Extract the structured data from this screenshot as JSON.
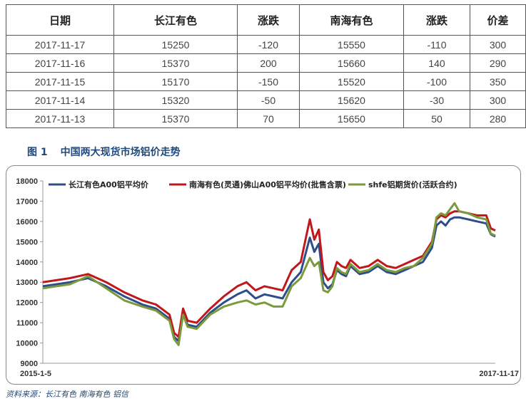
{
  "table": {
    "headers": [
      "日期",
      "长江有色",
      "涨跌",
      "南海有色",
      "涨跌",
      "价差"
    ],
    "rows": [
      [
        "2017-11-17",
        "15250",
        "-120",
        "15550",
        "-110",
        "300"
      ],
      [
        "2017-11-16",
        "15370",
        "200",
        "15660",
        "140",
        "290"
      ],
      [
        "2017-11-15",
        "15170",
        "-150",
        "15520",
        "-100",
        "350"
      ],
      [
        "2017-11-14",
        "15320",
        "-50",
        "15620",
        "-30",
        "300"
      ],
      [
        "2017-11-13",
        "15370",
        "70",
        "15650",
        "50",
        "280"
      ]
    ]
  },
  "figure": {
    "number": "图 1",
    "title": "中国两大现货市场铝价走势"
  },
  "source": "资料来源：长江有色   南海有色   铝信",
  "chart_data": {
    "type": "line",
    "x_start_label": "2015-1-5",
    "x_end_label": "2017-11-17",
    "ylim": [
      9000,
      18000
    ],
    "yticks": [
      9000,
      10000,
      11000,
      12000,
      13000,
      14000,
      15000,
      16000,
      17000,
      18000
    ],
    "grid": false,
    "legend": "top",
    "x_fraction": [
      0.0,
      0.03,
      0.06,
      0.1,
      0.14,
      0.18,
      0.22,
      0.25,
      0.28,
      0.29,
      0.3,
      0.31,
      0.32,
      0.34,
      0.37,
      0.4,
      0.43,
      0.45,
      0.47,
      0.49,
      0.51,
      0.53,
      0.55,
      0.57,
      0.59,
      0.6,
      0.61,
      0.62,
      0.63,
      0.64,
      0.65,
      0.66,
      0.67,
      0.68,
      0.7,
      0.72,
      0.74,
      0.76,
      0.78,
      0.8,
      0.82,
      0.84,
      0.86,
      0.87,
      0.88,
      0.89,
      0.9,
      0.91,
      0.92,
      0.94,
      0.96,
      0.98,
      0.99,
      1.0
    ],
    "series": [
      {
        "name": "长江有色A00铝平均价",
        "color": "#2e4d8a",
        "values": [
          12800,
          12900,
          13000,
          13200,
          12800,
          12300,
          11900,
          11700,
          11200,
          10300,
          10100,
          11500,
          10900,
          10800,
          11500,
          12000,
          12400,
          12600,
          12200,
          12400,
          12300,
          12200,
          13000,
          13500,
          15200,
          14500,
          14900,
          13000,
          12700,
          12900,
          13600,
          13400,
          13300,
          13800,
          13400,
          13500,
          13800,
          13500,
          13400,
          13600,
          13800,
          14000,
          14700,
          15800,
          16000,
          15800,
          16100,
          16200,
          16200,
          16100,
          16000,
          15900,
          15370,
          15250
        ]
      },
      {
        "name": "南海有色(灵通)佛山A00铝平均价(批售含票)",
        "color": "#c0171c",
        "values": [
          13000,
          13100,
          13200,
          13400,
          13000,
          12500,
          12100,
          11900,
          11400,
          10500,
          10300,
          11700,
          11100,
          11000,
          11700,
          12300,
          12800,
          13000,
          12600,
          12800,
          12700,
          12600,
          13600,
          14000,
          16100,
          15100,
          15600,
          13500,
          13100,
          13300,
          14000,
          13800,
          13700,
          14100,
          13700,
          13800,
          14100,
          13800,
          13700,
          13900,
          14100,
          14300,
          15000,
          16100,
          16300,
          16200,
          16400,
          16500,
          16500,
          16400,
          16300,
          16300,
          15660,
          15550
        ]
      },
      {
        "name": "shfe铝期货价(活跃合约)",
        "color": "#7a9a3c",
        "values": [
          12700,
          12800,
          12900,
          13300,
          12700,
          12100,
          11800,
          11600,
          11100,
          10200,
          9900,
          11400,
          10800,
          10700,
          11400,
          11800,
          12000,
          12100,
          11900,
          12000,
          11800,
          11800,
          12800,
          13200,
          14200,
          13800,
          14000,
          12600,
          12500,
          12800,
          13700,
          13500,
          13400,
          13900,
          13500,
          13600,
          13900,
          13600,
          13500,
          13700,
          13800,
          14200,
          14900,
          16200,
          16400,
          16300,
          16600,
          16900,
          16500,
          16400,
          16200,
          16100,
          15400,
          15300
        ]
      }
    ]
  }
}
